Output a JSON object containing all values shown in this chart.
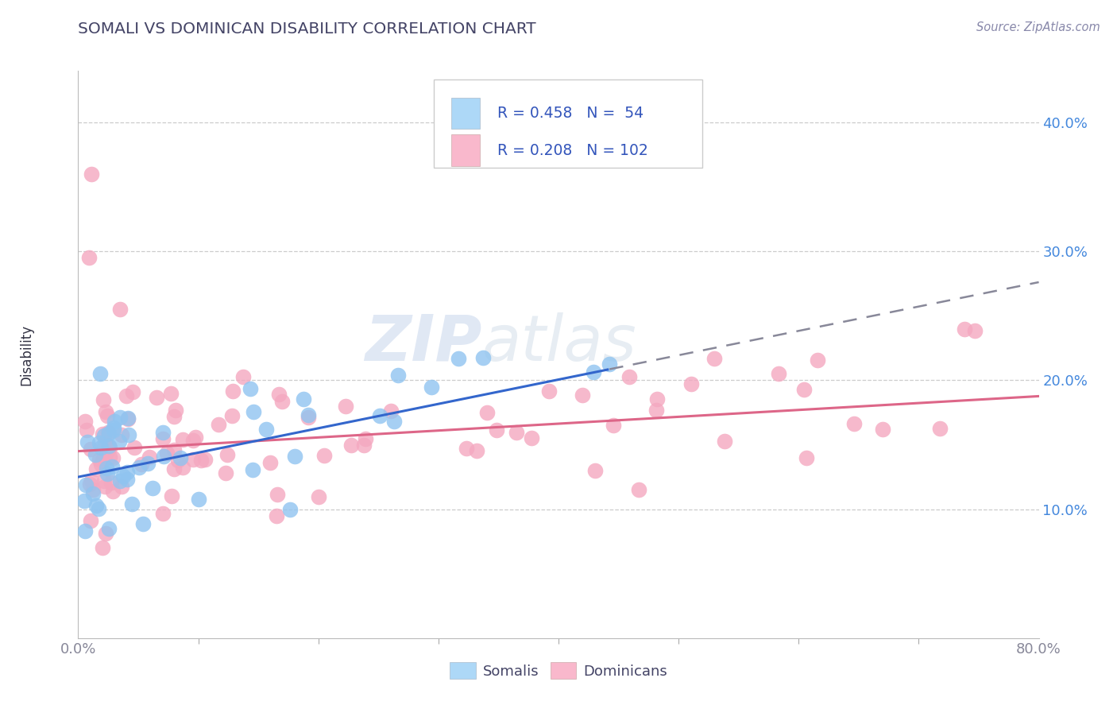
{
  "title": "SOMALI VS DOMINICAN DISABILITY CORRELATION CHART",
  "source_text": "Source: ZipAtlas.com",
  "ylabel": "Disability",
  "watermark_zip": "ZIP",
  "watermark_atlas": "atlas",
  "xlim": [
    0.0,
    0.8
  ],
  "ylim": [
    0.0,
    0.44
  ],
  "xtick_values": [
    0.0,
    0.8
  ],
  "xtick_labels": [
    "0.0%",
    "80.0%"
  ],
  "ytick_positions": [
    0.1,
    0.2,
    0.3,
    0.4
  ],
  "ytick_labels": [
    "10.0%",
    "20.0%",
    "30.0%",
    "40.0%"
  ],
  "somali_color": "#90C4F0",
  "dominican_color": "#F4A8C0",
  "somali_line_color": "#3366CC",
  "dominican_line_color": "#DD6688",
  "legend_text_color": "#3355BB",
  "somali_R": 0.458,
  "somali_N": 54,
  "dominican_R": 0.208,
  "dominican_N": 102,
  "background_color": "#FFFFFF",
  "grid_color": "#CCCCCC",
  "title_color": "#444466",
  "ytick_color": "#4488DD",
  "xtick_color": "#888899",
  "somali_legend_color": "#ADD8F7",
  "dominican_legend_color": "#F9B8CC"
}
